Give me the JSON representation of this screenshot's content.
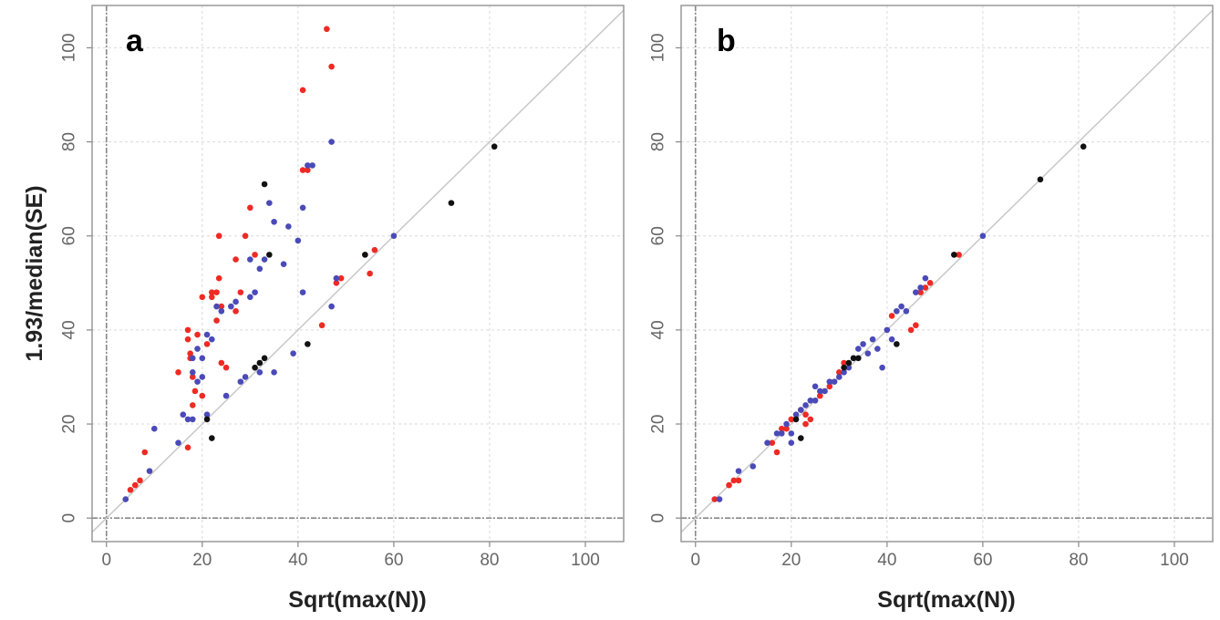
{
  "figure": {
    "ylabel": "1.93/median(SE)",
    "panel_a_label": "a",
    "panel_b_label": "b",
    "panel_a_xlabel": "Sqrt(max(N))",
    "panel_b_xlabel": "Sqrt(max(N))"
  },
  "colors": {
    "red": "#ee2a24",
    "blue": "#4a4ab8",
    "black": "#111111",
    "reference_line": "#c8c8c8",
    "grid": "#d9d9d9"
  },
  "chart_data": [
    {
      "type": "scatter",
      "panel": "a",
      "xlabel": "Sqrt(max(N))",
      "ylabel": "1.93/median(SE)",
      "xlim": [
        -3,
        108
      ],
      "ylim": [
        -5,
        109
      ],
      "xticks": [
        "0",
        "20",
        "40",
        "60",
        "80",
        "100"
      ],
      "yticks": [
        "0",
        "20",
        "40",
        "60",
        "80",
        "100"
      ],
      "grid": true,
      "reference_line": "y = x",
      "series": [
        {
          "color": "red",
          "points": [
            [
              5,
              6
            ],
            [
              6,
              7
            ],
            [
              7,
              8
            ],
            [
              8,
              14
            ],
            [
              15,
              31
            ],
            [
              17,
              15
            ],
            [
              17,
              40
            ],
            [
              17,
              38
            ],
            [
              17.5,
              35
            ],
            [
              17.5,
              34
            ],
            [
              18,
              30
            ],
            [
              18,
              24
            ],
            [
              18.5,
              27
            ],
            [
              19,
              39
            ],
            [
              20,
              26
            ],
            [
              20,
              47
            ],
            [
              21,
              37
            ],
            [
              22,
              48
            ],
            [
              22,
              47
            ],
            [
              23,
              42
            ],
            [
              23,
              48
            ],
            [
              23.5,
              60
            ],
            [
              23.5,
              51
            ],
            [
              24,
              45
            ],
            [
              24,
              33
            ],
            [
              25,
              32
            ],
            [
              27,
              55
            ],
            [
              27,
              44
            ],
            [
              28,
              48
            ],
            [
              29,
              60
            ],
            [
              30,
              66
            ],
            [
              31,
              56
            ],
            [
              41,
              91
            ],
            [
              41,
              74
            ],
            [
              45,
              41
            ],
            [
              46,
              104
            ],
            [
              47,
              96
            ],
            [
              48,
              50
            ],
            [
              49,
              51
            ],
            [
              54,
              56
            ],
            [
              55,
              52
            ],
            [
              56,
              57
            ],
            [
              42,
              74
            ]
          ]
        },
        {
          "color": "blue",
          "points": [
            [
              4,
              4
            ],
            [
              9,
              10
            ],
            [
              10,
              19
            ],
            [
              15,
              16
            ],
            [
              16,
              22
            ],
            [
              17,
              21
            ],
            [
              18,
              21
            ],
            [
              18,
              31
            ],
            [
              18,
              34
            ],
            [
              19,
              29
            ],
            [
              19,
              36
            ],
            [
              20,
              30
            ],
            [
              20,
              34
            ],
            [
              21,
              22
            ],
            [
              21,
              39
            ],
            [
              22,
              38
            ],
            [
              23,
              45
            ],
            [
              24,
              44
            ],
            [
              25,
              26
            ],
            [
              27,
              46
            ],
            [
              28,
              29
            ],
            [
              29,
              30
            ],
            [
              30,
              47
            ],
            [
              30,
              55
            ],
            [
              31,
              48
            ],
            [
              32,
              53
            ],
            [
              33,
              55
            ],
            [
              34,
              67
            ],
            [
              35,
              31
            ],
            [
              35,
              63
            ],
            [
              37,
              54
            ],
            [
              38,
              62
            ],
            [
              39,
              35
            ],
            [
              40,
              59
            ],
            [
              41,
              48
            ],
            [
              41,
              66
            ],
            [
              42,
              75
            ],
            [
              43,
              75
            ],
            [
              47,
              45
            ],
            [
              47,
              80
            ],
            [
              48,
              51
            ],
            [
              60,
              60
            ],
            [
              26,
              45
            ],
            [
              32,
              31
            ]
          ]
        },
        {
          "color": "black",
          "points": [
            [
              21,
              21
            ],
            [
              22,
              17
            ],
            [
              31,
              32
            ],
            [
              32,
              33
            ],
            [
              33,
              71
            ],
            [
              33,
              34
            ],
            [
              34,
              56
            ],
            [
              42,
              37
            ],
            [
              54,
              56
            ],
            [
              72,
              67
            ],
            [
              81,
              79
            ]
          ]
        }
      ]
    },
    {
      "type": "scatter",
      "panel": "b",
      "xlabel": "Sqrt(max(N))",
      "ylabel": "1.93/median(SE)",
      "xlim": [
        -3,
        108
      ],
      "ylim": [
        -5,
        109
      ],
      "xticks": [
        "0",
        "20",
        "40",
        "60",
        "80",
        "100"
      ],
      "yticks": [
        "0",
        "20",
        "40",
        "60",
        "80",
        "100"
      ],
      "grid": true,
      "reference_line": "y = x",
      "series": [
        {
          "color": "red",
          "points": [
            [
              4,
              4
            ],
            [
              7,
              7
            ],
            [
              8,
              8
            ],
            [
              9,
              8
            ],
            [
              16,
              16
            ],
            [
              17,
              14
            ],
            [
              18,
              19
            ],
            [
              19,
              19
            ],
            [
              20,
              21
            ],
            [
              22,
              23
            ],
            [
              23,
              20
            ],
            [
              23,
              22
            ],
            [
              24,
              21
            ],
            [
              26,
              26
            ],
            [
              28,
              28
            ],
            [
              30,
              31
            ],
            [
              31,
              33
            ],
            [
              41,
              43
            ],
            [
              45,
              40
            ],
            [
              46,
              41
            ],
            [
              47,
              48
            ],
            [
              48,
              49
            ],
            [
              49,
              50
            ],
            [
              54,
              56
            ],
            [
              55,
              56
            ]
          ]
        },
        {
          "color": "blue",
          "points": [
            [
              5,
              4
            ],
            [
              9,
              10
            ],
            [
              12,
              11
            ],
            [
              15,
              16
            ],
            [
              17,
              18
            ],
            [
              18,
              18
            ],
            [
              19,
              20
            ],
            [
              20,
              18
            ],
            [
              20,
              16
            ],
            [
              21,
              22
            ],
            [
              22,
              23
            ],
            [
              23,
              24
            ],
            [
              24,
              25
            ],
            [
              25,
              28
            ],
            [
              26,
              27
            ],
            [
              27,
              27
            ],
            [
              29,
              29
            ],
            [
              30,
              30
            ],
            [
              31,
              31
            ],
            [
              32,
              32
            ],
            [
              34,
              36
            ],
            [
              35,
              37
            ],
            [
              36,
              35
            ],
            [
              37,
              38
            ],
            [
              38,
              36
            ],
            [
              39,
              32
            ],
            [
              40,
              40
            ],
            [
              41,
              38
            ],
            [
              42,
              44
            ],
            [
              43,
              45
            ],
            [
              46,
              48
            ],
            [
              47,
              49
            ],
            [
              48,
              51
            ],
            [
              60,
              60
            ],
            [
              25,
              25
            ],
            [
              28,
              29
            ],
            [
              33,
              34
            ],
            [
              44,
              44
            ]
          ]
        },
        {
          "color": "black",
          "points": [
            [
              21,
              21
            ],
            [
              22,
              17
            ],
            [
              31,
              32
            ],
            [
              32,
              33
            ],
            [
              33,
              34
            ],
            [
              34,
              34
            ],
            [
              42,
              37
            ],
            [
              54,
              56
            ],
            [
              72,
              72
            ],
            [
              81,
              79
            ]
          ]
        }
      ]
    }
  ]
}
